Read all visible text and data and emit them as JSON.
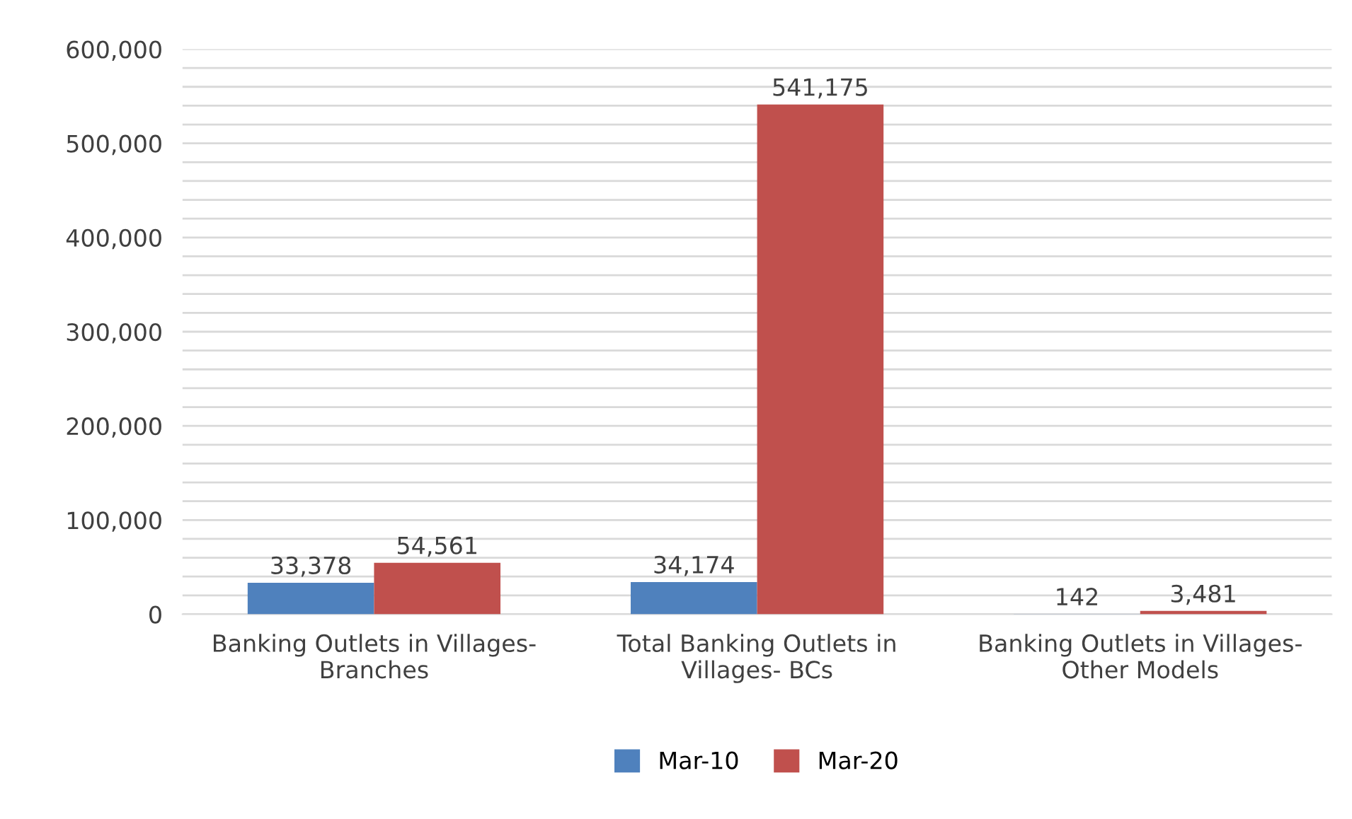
{
  "chart_data": {
    "type": "bar",
    "categories": [
      "Banking Outlets in Villages-\nBranches",
      "Total Banking Outlets in\nVillages- BCs",
      "Banking Outlets in Villages-\nOther Models"
    ],
    "series": [
      {
        "name": "Mar-10",
        "color": "#4f81bd",
        "values": [
          33378,
          34174,
          142
        ],
        "value_labels": [
          "33,378",
          "34,174",
          "142"
        ]
      },
      {
        "name": "Mar-20",
        "color": "#c0504d",
        "values": [
          54561,
          541175,
          3481
        ],
        "value_labels": [
          "54,561",
          "541,175",
          "3,481"
        ]
      }
    ],
    "ylim": [
      0,
      600000
    ],
    "yticks": [
      0,
      {
        "value": 20000,
        "label": null
      },
      {
        "value": 40000,
        "label": null
      },
      {
        "value": 60000,
        "label": null
      },
      {
        "value": 80000,
        "label": null
      },
      {
        "value": 100000,
        "label": "100,000"
      },
      {
        "value": 120000,
        "label": null
      },
      {
        "value": 140000,
        "label": null
      },
      {
        "value": 160000,
        "label": null
      },
      {
        "value": 180000,
        "label": null
      },
      {
        "value": 200000,
        "label": "200,000"
      },
      {
        "value": 220000,
        "label": null
      },
      {
        "value": 240000,
        "label": null
      },
      {
        "value": 260000,
        "label": null
      },
      {
        "value": 280000,
        "label": null
      },
      {
        "value": 300000,
        "label": "300,000"
      },
      {
        "value": 320000,
        "label": null
      },
      {
        "value": 340000,
        "label": null
      },
      {
        "value": 360000,
        "label": null
      },
      {
        "value": 380000,
        "label": null
      },
      {
        "value": 400000,
        "label": "400,000"
      },
      {
        "value": 420000,
        "label": null
      },
      {
        "value": 440000,
        "label": null
      },
      {
        "value": 460000,
        "label": null
      },
      {
        "value": 480000,
        "label": null
      },
      {
        "value": 500000,
        "label": "500,000"
      },
      {
        "value": 520000,
        "label": null
      },
      {
        "value": 540000,
        "label": null
      },
      {
        "value": 560000,
        "label": null
      },
      {
        "value": 580000,
        "label": null
      },
      {
        "value": 600000,
        "label": "600,000"
      }
    ],
    "grid": "y",
    "legend": "bottom"
  }
}
